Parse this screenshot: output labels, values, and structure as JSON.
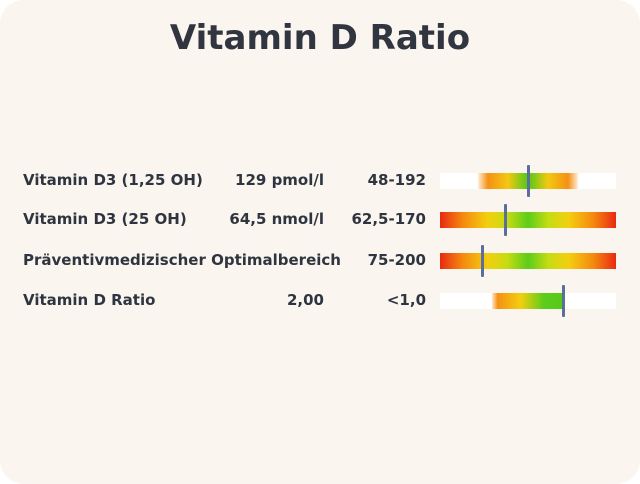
{
  "title": "Vitamin D Ratio",
  "rows": [
    {
      "name": "Vitamin D3 (1,25 OH)",
      "value": "129 pmol/l",
      "range": "48-192",
      "marker_fraction": 0.5
    },
    {
      "name": "Vitamin D3 (25 OH)",
      "value": "64,5 nmol/l",
      "range": "62,5-170",
      "marker_fraction": 0.37
    },
    {
      "name": "Präventivmedizischer Optimalbereich",
      "value": "",
      "range": "75-200",
      "marker_fraction": 0.24
    },
    {
      "name": "Vitamin D Ratio",
      "value": "2,00",
      "range": "<1,0",
      "marker_fraction": 0.7
    }
  ],
  "colors": {
    "background": "#faf5ee",
    "text": "#2f3540",
    "marker": "#5b6f9a",
    "good": "#5ccd1a",
    "warning": "#f3cf10",
    "bad": "#e82a12"
  }
}
